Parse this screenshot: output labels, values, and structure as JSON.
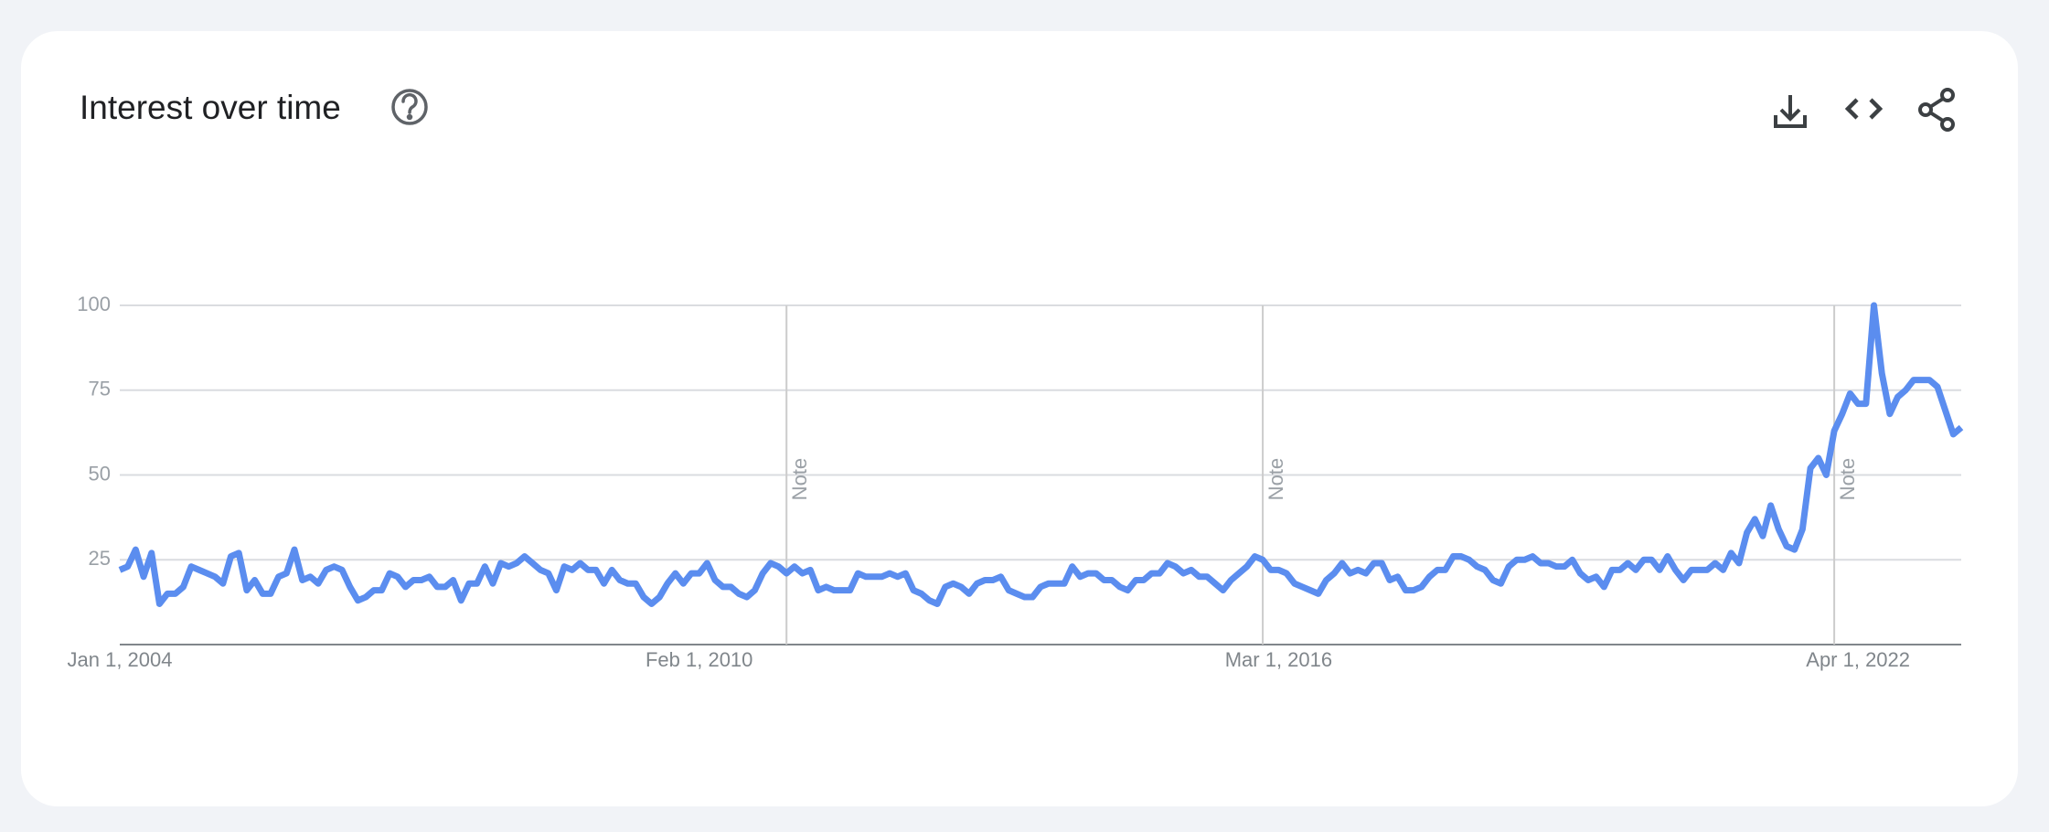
{
  "chart_data": {
    "type": "line",
    "title": "Interest over time",
    "categories": [
      "Jan 1, 2004",
      null,
      null,
      null,
      null,
      null,
      null,
      null,
      null,
      null,
      null,
      null,
      null,
      null,
      null,
      null,
      null,
      null,
      null,
      null,
      null,
      null,
      null,
      null,
      null,
      null,
      null,
      null,
      null,
      null,
      null,
      null,
      null,
      null,
      null,
      null,
      null,
      null,
      null,
      null,
      null,
      null,
      null,
      null,
      null,
      null,
      null,
      null,
      null,
      null,
      null,
      null,
      null,
      null,
      null,
      null,
      null,
      null,
      null,
      null,
      null,
      null,
      null,
      null,
      null,
      null,
      null,
      null,
      null,
      null,
      null,
      null,
      null,
      "Feb 1, 2010",
      null,
      null,
      null,
      null,
      null,
      null,
      null,
      null,
      null,
      null,
      null,
      null,
      null,
      null,
      null,
      null,
      null,
      null,
      null,
      null,
      null,
      null,
      null,
      null,
      null,
      null,
      null,
      null,
      null,
      null,
      null,
      null,
      null,
      null,
      null,
      null,
      null,
      null,
      null,
      null,
      null,
      null,
      null,
      null,
      null,
      null,
      null,
      null,
      null,
      null,
      null,
      null,
      null,
      null,
      null,
      null,
      null,
      null,
      null,
      null,
      null,
      null,
      null,
      null,
      null,
      null,
      null,
      null,
      null,
      null,
      null,
      null,
      "Mar 1, 2016",
      null,
      null,
      null,
      null,
      null,
      null,
      null,
      null,
      null,
      null,
      null,
      null,
      null,
      null,
      null,
      null,
      null,
      null,
      null,
      null,
      null,
      null,
      null,
      null,
      null,
      null,
      null,
      null,
      null,
      null,
      null,
      null,
      null,
      null,
      null,
      null,
      null,
      null,
      null,
      null,
      null,
      null,
      null,
      null,
      null,
      null,
      null,
      null,
      null,
      null,
      null,
      null,
      null,
      null,
      null,
      null,
      null,
      null,
      null,
      null,
      null,
      null,
      null,
      null,
      null,
      null,
      null,
      null,
      null,
      null,
      null,
      null,
      "Apr 1, 2022",
      null,
      null,
      null,
      null,
      null,
      null,
      null,
      null,
      null,
      null,
      null,
      null,
      null
    ],
    "series": [
      {
        "color": "#5b8def",
        "values": [
          22,
          23,
          28,
          20,
          27,
          12,
          15,
          15,
          17,
          23,
          22,
          21,
          20,
          18,
          26,
          27,
          16,
          19,
          15,
          15,
          20,
          21,
          28,
          19,
          20,
          18,
          22,
          23,
          22,
          17,
          13,
          14,
          16,
          16,
          21,
          20,
          17,
          19,
          19,
          20,
          17,
          17,
          19,
          13,
          18,
          18,
          23,
          18,
          24,
          23,
          24,
          26,
          24,
          22,
          21,
          16,
          23,
          22,
          24,
          22,
          22,
          18,
          22,
          19,
          18,
          18,
          14,
          12,
          14,
          18,
          21,
          18,
          21,
          21,
          24,
          19,
          17,
          17,
          15,
          14,
          16,
          21,
          24,
          23,
          21,
          23,
          21,
          22,
          16,
          17,
          16,
          16,
          16,
          21,
          20,
          20,
          20,
          21,
          20,
          21,
          16,
          15,
          13,
          12,
          17,
          18,
          17,
          15,
          18,
          19,
          19,
          20,
          16,
          15,
          14,
          14,
          17,
          18,
          18,
          18,
          23,
          20,
          21,
          21,
          19,
          19,
          17,
          16,
          19,
          19,
          21,
          21,
          24,
          23,
          21,
          22,
          20,
          20,
          18,
          16,
          19,
          21,
          23,
          26,
          25,
          22,
          22,
          21,
          18,
          17,
          16,
          15,
          19,
          21,
          24,
          21,
          22,
          21,
          24,
          24,
          19,
          20,
          16,
          16,
          17,
          20,
          22,
          22,
          26,
          26,
          25,
          23,
          22,
          19,
          18,
          23,
          25,
          25,
          26,
          24,
          24,
          23,
          23,
          25,
          21,
          19,
          20,
          17,
          22,
          22,
          24,
          22,
          25,
          25,
          22,
          26,
          22,
          19,
          22,
          22,
          22,
          24,
          22,
          27,
          24,
          33,
          37,
          32,
          41,
          34,
          29,
          28,
          34,
          52,
          55,
          50,
          63,
          68,
          74,
          71,
          71,
          100,
          80,
          68,
          73,
          75,
          78,
          78,
          78,
          76,
          69,
          62,
          64
        ]
      }
    ],
    "annotations": [
      {
        "index": 84,
        "text": "Note"
      },
      {
        "index": 144,
        "text": "Note"
      },
      {
        "index": 216,
        "text": "Note"
      }
    ],
    "ylim": [
      0,
      100
    ],
    "yticks": [
      25,
      50,
      75,
      100
    ],
    "grid": true
  }
}
